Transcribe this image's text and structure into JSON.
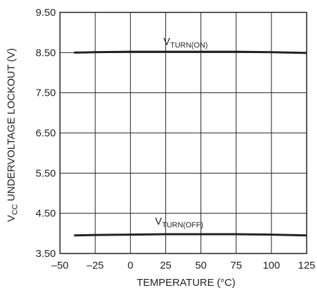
{
  "chart_data": {
    "type": "line",
    "title": "",
    "xlabel": "TEMPERATURE (°C)",
    "ylabel_main": "V",
    "ylabel_sub": "CC",
    "ylabel_rest": " UNDERVOLTAGE LOCKOUT (V)",
    "xlim": [
      -50,
      125
    ],
    "ylim": [
      3.5,
      9.5
    ],
    "xticks": [
      -50,
      -25,
      0,
      25,
      50,
      75,
      100,
      125
    ],
    "xtick_labels": [
      "–50",
      "–25",
      "0",
      "25",
      "50",
      "75",
      "100",
      "125"
    ],
    "yticks": [
      3.5,
      4.5,
      5.5,
      6.5,
      7.5,
      8.5,
      9.5
    ],
    "ytick_labels": [
      "3.50",
      "4.50",
      "5.50",
      "6.50",
      "7.50",
      "8.50",
      "9.50"
    ],
    "grid": true,
    "series": [
      {
        "name_main": "V",
        "name_sub": "TURN(ON)",
        "x": [
          -40,
          -25,
          0,
          25,
          50,
          75,
          100,
          125
        ],
        "y": [
          8.5,
          8.51,
          8.52,
          8.52,
          8.52,
          8.52,
          8.51,
          8.49
        ]
      },
      {
        "name_main": "V",
        "name_sub": "TURN(OFF)",
        "x": [
          -40,
          -25,
          0,
          25,
          50,
          75,
          100,
          125
        ],
        "y": [
          3.95,
          3.96,
          3.97,
          3.98,
          3.98,
          3.98,
          3.97,
          3.95
        ]
      }
    ],
    "line_color": "#231f20",
    "grid_color": "#231f20"
  }
}
